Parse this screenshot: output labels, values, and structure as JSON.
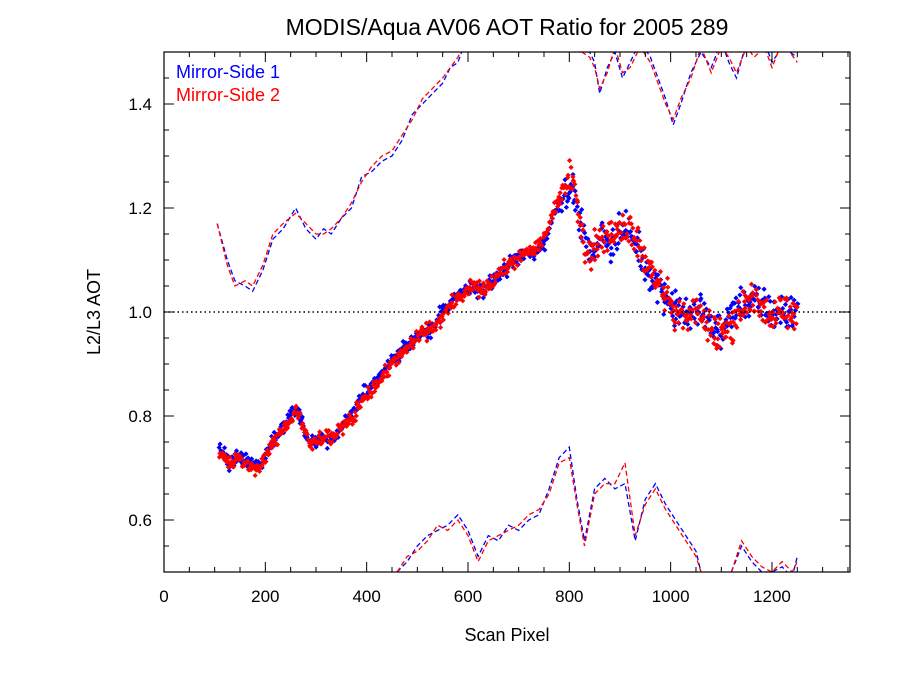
{
  "chart_data": {
    "type": "scatter",
    "title": "MODIS/Aqua AV06 AOT Ratio for 2005 289",
    "xlabel": "Scan Pixel",
    "ylabel": "L2/L3 AOT",
    "xlim": [
      0,
      1354
    ],
    "ylim": [
      0.5,
      1.5
    ],
    "xticks": [
      "0",
      "200",
      "400",
      "600",
      "800",
      "1000",
      "1200"
    ],
    "yticks": [
      "0.6",
      "0.8",
      "1.0",
      "1.2",
      "1.4"
    ],
    "reference_line": 1.0,
    "legend_position": "top-left",
    "grid": false,
    "series": [
      {
        "name": "Mirror-Side 1",
        "color": "#0000ff",
        "mean": [
          [
            110,
            0.74
          ],
          [
            130,
            0.71
          ],
          [
            150,
            0.72
          ],
          [
            170,
            0.71
          ],
          [
            190,
            0.7
          ],
          [
            210,
            0.75
          ],
          [
            230,
            0.77
          ],
          [
            250,
            0.8
          ],
          [
            260,
            0.82
          ],
          [
            275,
            0.78
          ],
          [
            290,
            0.75
          ],
          [
            310,
            0.76
          ],
          [
            330,
            0.75
          ],
          [
            350,
            0.78
          ],
          [
            370,
            0.8
          ],
          [
            390,
            0.84
          ],
          [
            410,
            0.86
          ],
          [
            430,
            0.88
          ],
          [
            450,
            0.91
          ],
          [
            470,
            0.93
          ],
          [
            490,
            0.94
          ],
          [
            510,
            0.96
          ],
          [
            530,
            0.97
          ],
          [
            550,
            1.0
          ],
          [
            570,
            1.02
          ],
          [
            590,
            1.04
          ],
          [
            610,
            1.05
          ],
          [
            630,
            1.04
          ],
          [
            650,
            1.06
          ],
          [
            670,
            1.08
          ],
          [
            690,
            1.1
          ],
          [
            710,
            1.11
          ],
          [
            730,
            1.11
          ],
          [
            750,
            1.13
          ],
          [
            770,
            1.19
          ],
          [
            790,
            1.23
          ],
          [
            800,
            1.24
          ],
          [
            815,
            1.21
          ],
          [
            830,
            1.14
          ],
          [
            845,
            1.1
          ],
          [
            860,
            1.15
          ],
          [
            880,
            1.13
          ],
          [
            900,
            1.16
          ],
          [
            920,
            1.15
          ],
          [
            940,
            1.11
          ],
          [
            960,
            1.07
          ],
          [
            980,
            1.05
          ],
          [
            1000,
            1.01
          ],
          [
            1020,
            1.0
          ],
          [
            1040,
            0.99
          ],
          [
            1060,
            1.01
          ],
          [
            1080,
            0.98
          ],
          [
            1100,
            0.96
          ],
          [
            1120,
            0.99
          ],
          [
            1140,
            1.02
          ],
          [
            1160,
            1.02
          ],
          [
            1180,
            1.01
          ],
          [
            1200,
            1.0
          ],
          [
            1220,
            1.0
          ],
          [
            1240,
            0.99
          ],
          [
            1250,
            1.01
          ]
        ],
        "envelope_upper": [
          [
            105,
            1.17
          ],
          [
            125,
            1.1
          ],
          [
            140,
            1.06
          ],
          [
            160,
            1.05
          ],
          [
            175,
            1.04
          ],
          [
            195,
            1.08
          ],
          [
            215,
            1.14
          ],
          [
            235,
            1.16
          ],
          [
            260,
            1.2
          ],
          [
            280,
            1.16
          ],
          [
            300,
            1.14
          ],
          [
            315,
            1.16
          ],
          [
            330,
            1.15
          ],
          [
            350,
            1.18
          ],
          [
            370,
            1.2
          ],
          [
            390,
            1.26
          ],
          [
            410,
            1.27
          ],
          [
            430,
            1.29
          ],
          [
            450,
            1.3
          ],
          [
            470,
            1.33
          ],
          [
            490,
            1.38
          ],
          [
            510,
            1.4
          ],
          [
            530,
            1.42
          ],
          [
            550,
            1.44
          ],
          [
            565,
            1.47
          ],
          [
            580,
            1.48
          ],
          [
            595,
            1.52
          ]
        ],
        "envelope_upper_right": [
          [
            800,
            1.52
          ],
          [
            810,
            1.5
          ],
          [
            840,
            1.5
          ],
          [
            850,
            1.48
          ],
          [
            860,
            1.42
          ],
          [
            875,
            1.47
          ],
          [
            890,
            1.5
          ],
          [
            905,
            1.45
          ],
          [
            920,
            1.48
          ],
          [
            940,
            1.52
          ],
          [
            960,
            1.49
          ],
          [
            975,
            1.45
          ],
          [
            990,
            1.41
          ],
          [
            1005,
            1.36
          ],
          [
            1020,
            1.4
          ],
          [
            1040,
            1.46
          ],
          [
            1060,
            1.5
          ],
          [
            1080,
            1.47
          ],
          [
            1100,
            1.52
          ],
          [
            1115,
            1.48
          ],
          [
            1130,
            1.45
          ],
          [
            1150,
            1.52
          ],
          [
            1165,
            1.5
          ],
          [
            1185,
            1.52
          ],
          [
            1200,
            1.48
          ],
          [
            1220,
            1.51
          ],
          [
            1250,
            1.49
          ]
        ],
        "envelope_lower": [
          [
            460,
            0.5
          ],
          [
            480,
            0.52
          ],
          [
            500,
            0.55
          ],
          [
            520,
            0.57
          ],
          [
            540,
            0.58
          ],
          [
            560,
            0.59
          ],
          [
            580,
            0.61
          ],
          [
            600,
            0.58
          ],
          [
            620,
            0.53
          ],
          [
            640,
            0.57
          ],
          [
            660,
            0.56
          ],
          [
            680,
            0.59
          ],
          [
            700,
            0.58
          ],
          [
            720,
            0.6
          ],
          [
            740,
            0.61
          ],
          [
            760,
            0.66
          ],
          [
            780,
            0.72
          ],
          [
            800,
            0.74
          ],
          [
            815,
            0.64
          ],
          [
            830,
            0.56
          ],
          [
            850,
            0.66
          ],
          [
            870,
            0.68
          ],
          [
            890,
            0.66
          ],
          [
            910,
            0.67
          ],
          [
            930,
            0.56
          ],
          [
            950,
            0.64
          ],
          [
            970,
            0.67
          ],
          [
            990,
            0.63
          ],
          [
            1010,
            0.6
          ],
          [
            1030,
            0.57
          ],
          [
            1050,
            0.54
          ],
          [
            1060,
            0.5
          ]
        ],
        "envelope_lower_right": [
          [
            1120,
            0.5
          ],
          [
            1140,
            0.55
          ],
          [
            1160,
            0.52
          ],
          [
            1180,
            0.5
          ],
          [
            1200,
            0.5
          ],
          [
            1220,
            0.51
          ],
          [
            1240,
            0.49
          ],
          [
            1250,
            0.53
          ]
        ]
      },
      {
        "name": "Mirror-Side 2",
        "color": "#ff0000",
        "mean": [
          [
            110,
            0.73
          ],
          [
            130,
            0.71
          ],
          [
            150,
            0.72
          ],
          [
            170,
            0.7
          ],
          [
            190,
            0.7
          ],
          [
            210,
            0.74
          ],
          [
            230,
            0.77
          ],
          [
            250,
            0.79
          ],
          [
            260,
            0.81
          ],
          [
            275,
            0.78
          ],
          [
            290,
            0.75
          ],
          [
            310,
            0.76
          ],
          [
            330,
            0.76
          ],
          [
            350,
            0.78
          ],
          [
            370,
            0.79
          ],
          [
            390,
            0.83
          ],
          [
            410,
            0.85
          ],
          [
            430,
            0.87
          ],
          [
            450,
            0.9
          ],
          [
            470,
            0.92
          ],
          [
            490,
            0.94
          ],
          [
            510,
            0.96
          ],
          [
            530,
            0.97
          ],
          [
            550,
            0.99
          ],
          [
            570,
            1.02
          ],
          [
            590,
            1.03
          ],
          [
            610,
            1.05
          ],
          [
            630,
            1.04
          ],
          [
            650,
            1.06
          ],
          [
            670,
            1.08
          ],
          [
            690,
            1.1
          ],
          [
            710,
            1.11
          ],
          [
            730,
            1.12
          ],
          [
            750,
            1.14
          ],
          [
            770,
            1.2
          ],
          [
            790,
            1.24
          ],
          [
            800,
            1.26
          ],
          [
            815,
            1.22
          ],
          [
            830,
            1.13
          ],
          [
            845,
            1.11
          ],
          [
            860,
            1.14
          ],
          [
            880,
            1.15
          ],
          [
            900,
            1.17
          ],
          [
            920,
            1.16
          ],
          [
            940,
            1.12
          ],
          [
            960,
            1.08
          ],
          [
            980,
            1.05
          ],
          [
            1000,
            1.01
          ],
          [
            1020,
            0.99
          ],
          [
            1040,
            1.0
          ],
          [
            1060,
            0.99
          ],
          [
            1080,
            0.97
          ],
          [
            1100,
            0.95
          ],
          [
            1120,
            0.98
          ],
          [
            1140,
            1.01
          ],
          [
            1160,
            1.03
          ],
          [
            1180,
            1.0
          ],
          [
            1200,
            0.99
          ],
          [
            1220,
            1.0
          ],
          [
            1240,
            1.0
          ],
          [
            1250,
            1.0
          ]
        ],
        "envelope_upper": [
          [
            105,
            1.17
          ],
          [
            125,
            1.09
          ],
          [
            140,
            1.05
          ],
          [
            160,
            1.06
          ],
          [
            175,
            1.05
          ],
          [
            195,
            1.09
          ],
          [
            215,
            1.15
          ],
          [
            235,
            1.17
          ],
          [
            260,
            1.19
          ],
          [
            280,
            1.17
          ],
          [
            300,
            1.15
          ],
          [
            315,
            1.15
          ],
          [
            330,
            1.16
          ],
          [
            350,
            1.18
          ],
          [
            370,
            1.21
          ],
          [
            390,
            1.25
          ],
          [
            410,
            1.28
          ],
          [
            430,
            1.3
          ],
          [
            450,
            1.31
          ],
          [
            470,
            1.34
          ],
          [
            490,
            1.37
          ],
          [
            510,
            1.41
          ],
          [
            530,
            1.43
          ],
          [
            550,
            1.45
          ],
          [
            565,
            1.47
          ],
          [
            580,
            1.49
          ],
          [
            595,
            1.52
          ]
        ],
        "envelope_upper_right": [
          [
            800,
            1.52
          ],
          [
            810,
            1.51
          ],
          [
            840,
            1.49
          ],
          [
            850,
            1.47
          ],
          [
            860,
            1.43
          ],
          [
            875,
            1.46
          ],
          [
            890,
            1.51
          ],
          [
            905,
            1.46
          ],
          [
            920,
            1.47
          ],
          [
            940,
            1.51
          ],
          [
            960,
            1.48
          ],
          [
            975,
            1.44
          ],
          [
            990,
            1.4
          ],
          [
            1005,
            1.37
          ],
          [
            1020,
            1.41
          ],
          [
            1040,
            1.45
          ],
          [
            1060,
            1.51
          ],
          [
            1080,
            1.46
          ],
          [
            1100,
            1.51
          ],
          [
            1115,
            1.49
          ],
          [
            1130,
            1.46
          ],
          [
            1150,
            1.51
          ],
          [
            1165,
            1.49
          ],
          [
            1185,
            1.51
          ],
          [
            1200,
            1.47
          ],
          [
            1220,
            1.52
          ],
          [
            1250,
            1.48
          ]
        ],
        "envelope_lower": [
          [
            460,
            0.5
          ],
          [
            480,
            0.53
          ],
          [
            500,
            0.54
          ],
          [
            520,
            0.56
          ],
          [
            540,
            0.59
          ],
          [
            560,
            0.58
          ],
          [
            580,
            0.6
          ],
          [
            600,
            0.57
          ],
          [
            620,
            0.52
          ],
          [
            640,
            0.56
          ],
          [
            660,
            0.57
          ],
          [
            680,
            0.58
          ],
          [
            700,
            0.59
          ],
          [
            720,
            0.61
          ],
          [
            740,
            0.62
          ],
          [
            760,
            0.65
          ],
          [
            780,
            0.71
          ],
          [
            800,
            0.72
          ],
          [
            815,
            0.63
          ],
          [
            830,
            0.55
          ],
          [
            850,
            0.65
          ],
          [
            870,
            0.67
          ],
          [
            890,
            0.67
          ],
          [
            910,
            0.71
          ],
          [
            930,
            0.57
          ],
          [
            950,
            0.63
          ],
          [
            970,
            0.66
          ],
          [
            990,
            0.62
          ],
          [
            1010,
            0.59
          ],
          [
            1030,
            0.56
          ],
          [
            1050,
            0.53
          ],
          [
            1060,
            0.5
          ]
        ],
        "envelope_lower_right": [
          [
            1120,
            0.5
          ],
          [
            1140,
            0.56
          ],
          [
            1160,
            0.53
          ],
          [
            1180,
            0.51
          ],
          [
            1200,
            0.5
          ],
          [
            1220,
            0.52
          ],
          [
            1240,
            0.5
          ],
          [
            1250,
            0.52
          ]
        ]
      }
    ]
  }
}
